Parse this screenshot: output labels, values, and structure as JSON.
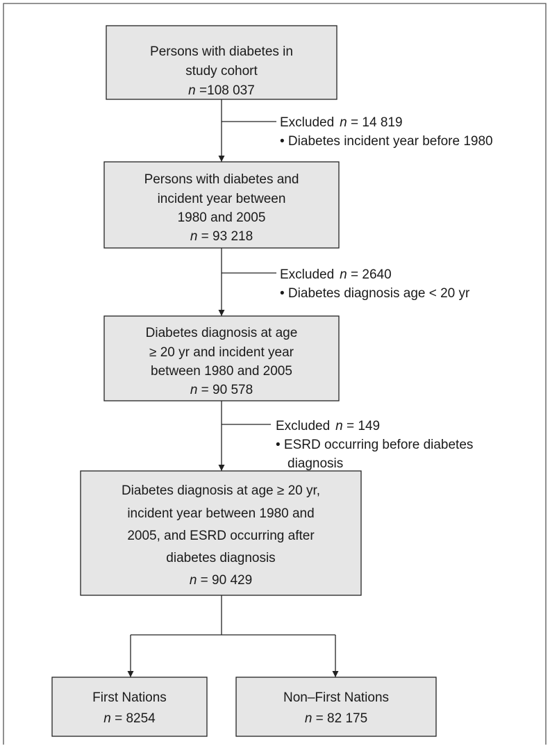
{
  "boxes": [
    {
      "lines": [
        "Persons with diabetes in",
        "study cohort"
      ],
      "n_symbol": "n",
      "n_value": " =108 037"
    },
    {
      "lines": [
        "Persons with diabetes and",
        "incident year between",
        "1980 and 2005"
      ],
      "n_symbol": "n",
      "n_value": " = 93 218"
    },
    {
      "lines": [
        "Diabetes diagnosis at age",
        "≥ 20 yr and incident year",
        "between 1980 and 2005"
      ],
      "n_symbol": "n",
      "n_value": " = 90 578"
    },
    {
      "lines": [
        "Diabetes diagnosis at age ≥ 20 yr,",
        "incident year between 1980 and",
        "2005, and ESRD occurring after",
        "diabetes diagnosis"
      ],
      "n_symbol": "n",
      "n_value": " = 90 429"
    },
    {
      "lines": [
        "First Nations"
      ],
      "n_symbol": "n",
      "n_value": " = 8254"
    },
    {
      "lines": [
        "Non–First Nations"
      ],
      "n_symbol": "n",
      "n_value": " = 82 175"
    }
  ],
  "exclusions": [
    {
      "label": "Excluded",
      "n_symbol": "n",
      "n_value": " = 14 819",
      "reasons": [
        "• Diabetes incident year before 1980"
      ]
    },
    {
      "label": "Excluded",
      "n_symbol": "n",
      "n_value": " = 2640",
      "reasons": [
        "• Diabetes diagnosis age < 20 yr"
      ]
    },
    {
      "label": "Excluded",
      "n_symbol": "n",
      "n_value": " = 149",
      "reasons": [
        "• ESRD occurring before diabetes",
        "diagnosis"
      ]
    }
  ]
}
